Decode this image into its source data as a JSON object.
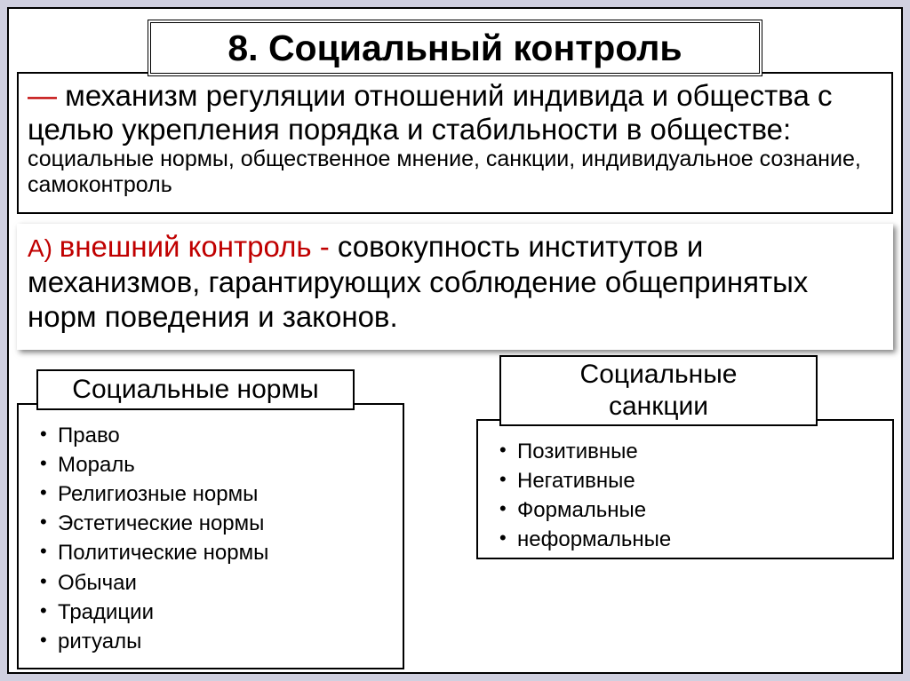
{
  "title": "8. Социальный контроль",
  "definition": {
    "dash": "—",
    "main_text": " механизм регуляции отношений индивида и общества с целью укрепления порядка и стабильности в обществе: ",
    "sub_text": "социальные нормы, общественное мнение, санкции, индивидуальное сознание, самоконтроль"
  },
  "external_control": {
    "a_label": "А) ",
    "label": "внешний контроль - ",
    "text": "совокупность институтов и механизмов, гарантирующих соблюдение общепринятых норм поведения и законов."
  },
  "norms": {
    "header": "Социальные нормы",
    "items": [
      "Право",
      "Мораль",
      "Религиозные нормы",
      "Эстетические нормы",
      "Политические нормы",
      "Обычаи",
      "Традиции",
      "ритуалы"
    ]
  },
  "sanctions": {
    "header_line1": "Социальные",
    "header_line2": "санкции",
    "items": [
      "Позитивные",
      "Негативные",
      "Формальные",
      "неформальные"
    ]
  },
  "colors": {
    "background": "#d0d0e0",
    "box_bg": "#ffffff",
    "border": "#000000",
    "accent": "#c00000",
    "text": "#000000"
  }
}
